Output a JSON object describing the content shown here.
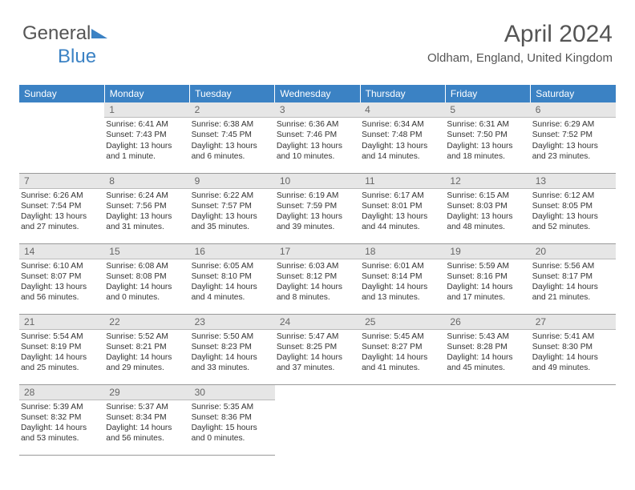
{
  "logo": {
    "text1": "General",
    "text2": "Blue"
  },
  "header": {
    "month_title": "April 2024",
    "location": "Oldham, England, United Kingdom"
  },
  "colors": {
    "header_bg": "#3b82c4",
    "daynum_bg": "#e6e6e6",
    "text_dark": "#333333",
    "text_gray": "#555555"
  },
  "weekdays": [
    "Sunday",
    "Monday",
    "Tuesday",
    "Wednesday",
    "Thursday",
    "Friday",
    "Saturday"
  ],
  "weeks": [
    [
      null,
      {
        "n": "1",
        "sr": "Sunrise: 6:41 AM",
        "ss": "Sunset: 7:43 PM",
        "dl1": "Daylight: 13 hours",
        "dl2": "and 1 minute."
      },
      {
        "n": "2",
        "sr": "Sunrise: 6:38 AM",
        "ss": "Sunset: 7:45 PM",
        "dl1": "Daylight: 13 hours",
        "dl2": "and 6 minutes."
      },
      {
        "n": "3",
        "sr": "Sunrise: 6:36 AM",
        "ss": "Sunset: 7:46 PM",
        "dl1": "Daylight: 13 hours",
        "dl2": "and 10 minutes."
      },
      {
        "n": "4",
        "sr": "Sunrise: 6:34 AM",
        "ss": "Sunset: 7:48 PM",
        "dl1": "Daylight: 13 hours",
        "dl2": "and 14 minutes."
      },
      {
        "n": "5",
        "sr": "Sunrise: 6:31 AM",
        "ss": "Sunset: 7:50 PM",
        "dl1": "Daylight: 13 hours",
        "dl2": "and 18 minutes."
      },
      {
        "n": "6",
        "sr": "Sunrise: 6:29 AM",
        "ss": "Sunset: 7:52 PM",
        "dl1": "Daylight: 13 hours",
        "dl2": "and 23 minutes."
      }
    ],
    [
      {
        "n": "7",
        "sr": "Sunrise: 6:26 AM",
        "ss": "Sunset: 7:54 PM",
        "dl1": "Daylight: 13 hours",
        "dl2": "and 27 minutes."
      },
      {
        "n": "8",
        "sr": "Sunrise: 6:24 AM",
        "ss": "Sunset: 7:56 PM",
        "dl1": "Daylight: 13 hours",
        "dl2": "and 31 minutes."
      },
      {
        "n": "9",
        "sr": "Sunrise: 6:22 AM",
        "ss": "Sunset: 7:57 PM",
        "dl1": "Daylight: 13 hours",
        "dl2": "and 35 minutes."
      },
      {
        "n": "10",
        "sr": "Sunrise: 6:19 AM",
        "ss": "Sunset: 7:59 PM",
        "dl1": "Daylight: 13 hours",
        "dl2": "and 39 minutes."
      },
      {
        "n": "11",
        "sr": "Sunrise: 6:17 AM",
        "ss": "Sunset: 8:01 PM",
        "dl1": "Daylight: 13 hours",
        "dl2": "and 44 minutes."
      },
      {
        "n": "12",
        "sr": "Sunrise: 6:15 AM",
        "ss": "Sunset: 8:03 PM",
        "dl1": "Daylight: 13 hours",
        "dl2": "and 48 minutes."
      },
      {
        "n": "13",
        "sr": "Sunrise: 6:12 AM",
        "ss": "Sunset: 8:05 PM",
        "dl1": "Daylight: 13 hours",
        "dl2": "and 52 minutes."
      }
    ],
    [
      {
        "n": "14",
        "sr": "Sunrise: 6:10 AM",
        "ss": "Sunset: 8:07 PM",
        "dl1": "Daylight: 13 hours",
        "dl2": "and 56 minutes."
      },
      {
        "n": "15",
        "sr": "Sunrise: 6:08 AM",
        "ss": "Sunset: 8:08 PM",
        "dl1": "Daylight: 14 hours",
        "dl2": "and 0 minutes."
      },
      {
        "n": "16",
        "sr": "Sunrise: 6:05 AM",
        "ss": "Sunset: 8:10 PM",
        "dl1": "Daylight: 14 hours",
        "dl2": "and 4 minutes."
      },
      {
        "n": "17",
        "sr": "Sunrise: 6:03 AM",
        "ss": "Sunset: 8:12 PM",
        "dl1": "Daylight: 14 hours",
        "dl2": "and 8 minutes."
      },
      {
        "n": "18",
        "sr": "Sunrise: 6:01 AM",
        "ss": "Sunset: 8:14 PM",
        "dl1": "Daylight: 14 hours",
        "dl2": "and 13 minutes."
      },
      {
        "n": "19",
        "sr": "Sunrise: 5:59 AM",
        "ss": "Sunset: 8:16 PM",
        "dl1": "Daylight: 14 hours",
        "dl2": "and 17 minutes."
      },
      {
        "n": "20",
        "sr": "Sunrise: 5:56 AM",
        "ss": "Sunset: 8:17 PM",
        "dl1": "Daylight: 14 hours",
        "dl2": "and 21 minutes."
      }
    ],
    [
      {
        "n": "21",
        "sr": "Sunrise: 5:54 AM",
        "ss": "Sunset: 8:19 PM",
        "dl1": "Daylight: 14 hours",
        "dl2": "and 25 minutes."
      },
      {
        "n": "22",
        "sr": "Sunrise: 5:52 AM",
        "ss": "Sunset: 8:21 PM",
        "dl1": "Daylight: 14 hours",
        "dl2": "and 29 minutes."
      },
      {
        "n": "23",
        "sr": "Sunrise: 5:50 AM",
        "ss": "Sunset: 8:23 PM",
        "dl1": "Daylight: 14 hours",
        "dl2": "and 33 minutes."
      },
      {
        "n": "24",
        "sr": "Sunrise: 5:47 AM",
        "ss": "Sunset: 8:25 PM",
        "dl1": "Daylight: 14 hours",
        "dl2": "and 37 minutes."
      },
      {
        "n": "25",
        "sr": "Sunrise: 5:45 AM",
        "ss": "Sunset: 8:27 PM",
        "dl1": "Daylight: 14 hours",
        "dl2": "and 41 minutes."
      },
      {
        "n": "26",
        "sr": "Sunrise: 5:43 AM",
        "ss": "Sunset: 8:28 PM",
        "dl1": "Daylight: 14 hours",
        "dl2": "and 45 minutes."
      },
      {
        "n": "27",
        "sr": "Sunrise: 5:41 AM",
        "ss": "Sunset: 8:30 PM",
        "dl1": "Daylight: 14 hours",
        "dl2": "and 49 minutes."
      }
    ],
    [
      {
        "n": "28",
        "sr": "Sunrise: 5:39 AM",
        "ss": "Sunset: 8:32 PM",
        "dl1": "Daylight: 14 hours",
        "dl2": "and 53 minutes."
      },
      {
        "n": "29",
        "sr": "Sunrise: 5:37 AM",
        "ss": "Sunset: 8:34 PM",
        "dl1": "Daylight: 14 hours",
        "dl2": "and 56 minutes."
      },
      {
        "n": "30",
        "sr": "Sunrise: 5:35 AM",
        "ss": "Sunset: 8:36 PM",
        "dl1": "Daylight: 15 hours",
        "dl2": "and 0 minutes."
      },
      null,
      null,
      null,
      null
    ]
  ]
}
